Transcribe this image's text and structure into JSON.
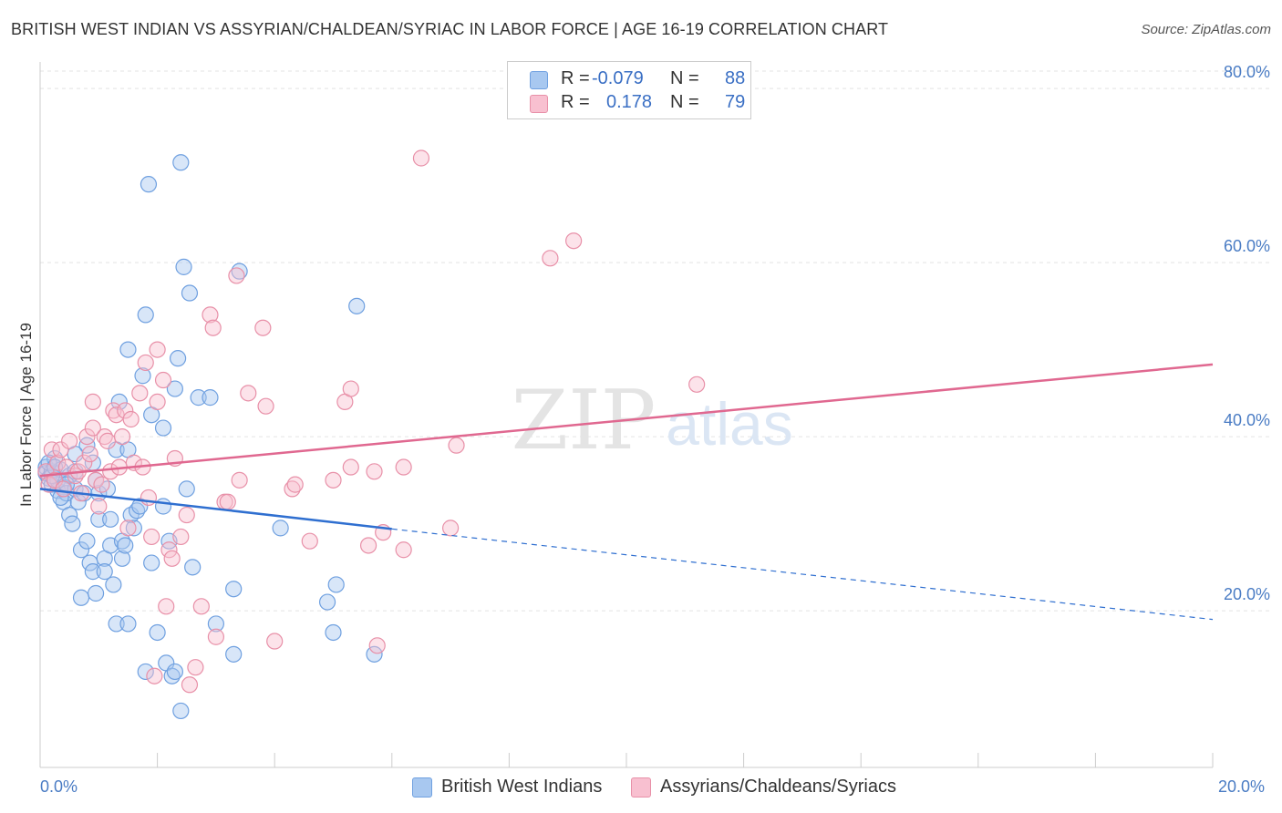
{
  "title": "BRITISH WEST INDIAN VS ASSYRIAN/CHALDEAN/SYRIAC IN LABOR FORCE | AGE 16-19 CORRELATION CHART",
  "source": "Source: ZipAtlas.com",
  "watermark": {
    "zip": "ZIP",
    "atlas": "atlas"
  },
  "legend": {
    "rows": [
      {
        "r_label": "R =",
        "r_value": "-0.079",
        "n_label": "N =",
        "n_value": "88",
        "color": "#a8c8f0"
      },
      {
        "r_label": "R =",
        "r_value": "0.178",
        "n_label": "N =",
        "n_value": "79",
        "color": "#f8c0d0"
      }
    ]
  },
  "x_ticks": {
    "left": "0.0%",
    "right": "20.0%"
  },
  "chart_data": {
    "type": "scatter",
    "title": "BRITISH WEST INDIAN VS ASSYRIAN/CHALDEAN/SYRIAC IN LABOR FORCE | AGE 16-19 CORRELATION CHART",
    "xlabel": "",
    "ylabel": "In Labor Force | Age 16-19",
    "xlim": [
      0,
      20
    ],
    "ylim": [
      2,
      82
    ],
    "y_ticks": [
      {
        "value": 20,
        "label": "20.0%"
      },
      {
        "value": 40,
        "label": "40.0%"
      },
      {
        "value": 60,
        "label": "60.0%"
      },
      {
        "value": 80,
        "label": "80.0%"
      }
    ],
    "x_ticks": [
      0,
      2,
      4,
      6,
      8,
      10,
      12,
      14,
      16,
      18,
      20
    ],
    "grid": true,
    "series": [
      {
        "name": "British West Indians",
        "color": "#6fa0e0",
        "fill": "#a8c8f0",
        "trend": {
          "x0": 0,
          "y0": 34.0,
          "x1": 6.0,
          "y1": 29.4,
          "dash_to_x": 20,
          "dash_to_y": 19.0,
          "color": "#2f6fd0"
        },
        "points": [
          [
            0.1,
            36.5
          ],
          [
            0.1,
            35.8
          ],
          [
            0.15,
            35.2
          ],
          [
            0.2,
            36.0
          ],
          [
            0.2,
            34.5
          ],
          [
            0.25,
            37.5
          ],
          [
            0.3,
            33.8
          ],
          [
            0.3,
            35.0
          ],
          [
            0.35,
            36.2
          ],
          [
            0.4,
            34.2
          ],
          [
            0.4,
            32.5
          ],
          [
            0.45,
            33.5
          ],
          [
            0.5,
            31.0
          ],
          [
            0.5,
            35.5
          ],
          [
            0.55,
            30.0
          ],
          [
            0.6,
            34.0
          ],
          [
            0.6,
            36.0
          ],
          [
            0.65,
            32.5
          ],
          [
            0.7,
            27.0
          ],
          [
            0.7,
            21.5
          ],
          [
            0.75,
            33.5
          ],
          [
            0.8,
            28.0
          ],
          [
            0.8,
            39.0
          ],
          [
            0.85,
            25.5
          ],
          [
            0.9,
            24.5
          ],
          [
            0.9,
            37.0
          ],
          [
            0.95,
            22.0
          ],
          [
            1.0,
            33.5
          ],
          [
            1.0,
            30.5
          ],
          [
            1.1,
            26.0
          ],
          [
            1.1,
            24.5
          ],
          [
            1.2,
            27.5
          ],
          [
            1.2,
            30.5
          ],
          [
            1.25,
            23.0
          ],
          [
            1.3,
            18.5
          ],
          [
            1.3,
            38.5
          ],
          [
            1.35,
            44.0
          ],
          [
            1.4,
            28.0
          ],
          [
            1.4,
            26.0
          ],
          [
            1.45,
            27.5
          ],
          [
            1.5,
            18.5
          ],
          [
            1.5,
            38.5
          ],
          [
            1.5,
            50.0
          ],
          [
            1.55,
            31.0
          ],
          [
            1.6,
            29.5
          ],
          [
            1.65,
            31.5
          ],
          [
            1.7,
            32.0
          ],
          [
            1.75,
            47.0
          ],
          [
            1.8,
            13.0
          ],
          [
            1.8,
            54.0
          ],
          [
            1.85,
            69.0
          ],
          [
            1.9,
            25.5
          ],
          [
            1.9,
            42.5
          ],
          [
            2.0,
            17.5
          ],
          [
            2.1,
            41.0
          ],
          [
            2.1,
            32.0
          ],
          [
            2.15,
            14.0
          ],
          [
            2.2,
            28.0
          ],
          [
            2.25,
            12.5
          ],
          [
            2.3,
            13.0
          ],
          [
            2.3,
            45.5
          ],
          [
            2.35,
            49.0
          ],
          [
            2.4,
            8.5
          ],
          [
            2.4,
            71.5
          ],
          [
            2.45,
            59.5
          ],
          [
            2.5,
            34.0
          ],
          [
            2.55,
            56.5
          ],
          [
            2.6,
            25.0
          ],
          [
            2.7,
            44.5
          ],
          [
            2.9,
            44.5
          ],
          [
            3.0,
            18.5
          ],
          [
            3.3,
            15.0
          ],
          [
            3.3,
            22.5
          ],
          [
            3.4,
            59.0
          ],
          [
            4.1,
            29.5
          ],
          [
            4.9,
            21.0
          ],
          [
            5.0,
            17.5
          ],
          [
            5.05,
            23.0
          ],
          [
            5.4,
            55.0
          ],
          [
            5.7,
            15.0
          ],
          [
            0.2,
            35.5
          ],
          [
            0.35,
            33.0
          ],
          [
            0.6,
            38.0
          ],
          [
            0.95,
            35.0
          ],
          [
            1.15,
            34.0
          ],
          [
            0.45,
            34.5
          ],
          [
            0.15,
            37.0
          ],
          [
            0.25,
            36.5
          ]
        ]
      },
      {
        "name": "Assyrians/Chaldeans/Syriacs",
        "color": "#e890a8",
        "fill": "#f8c0d0",
        "trend": {
          "x0": 0,
          "y0": 35.5,
          "x1": 20,
          "y1": 48.3,
          "color": "#e06890"
        },
        "points": [
          [
            0.1,
            36.0
          ],
          [
            0.15,
            34.5
          ],
          [
            0.2,
            38.5
          ],
          [
            0.25,
            35.0
          ],
          [
            0.3,
            37.0
          ],
          [
            0.35,
            38.5
          ],
          [
            0.4,
            34.0
          ],
          [
            0.45,
            36.5
          ],
          [
            0.5,
            39.5
          ],
          [
            0.6,
            35.5
          ],
          [
            0.65,
            36.0
          ],
          [
            0.7,
            33.5
          ],
          [
            0.75,
            37.0
          ],
          [
            0.8,
            40.0
          ],
          [
            0.85,
            38.0
          ],
          [
            0.9,
            44.0
          ],
          [
            0.9,
            41.0
          ],
          [
            0.95,
            35.0
          ],
          [
            1.0,
            32.0
          ],
          [
            1.05,
            34.5
          ],
          [
            1.1,
            40.0
          ],
          [
            1.15,
            39.5
          ],
          [
            1.2,
            36.0
          ],
          [
            1.25,
            43.0
          ],
          [
            1.3,
            42.5
          ],
          [
            1.35,
            36.5
          ],
          [
            1.4,
            40.0
          ],
          [
            1.45,
            43.0
          ],
          [
            1.5,
            29.5
          ],
          [
            1.55,
            42.0
          ],
          [
            1.6,
            37.0
          ],
          [
            1.7,
            45.0
          ],
          [
            1.75,
            36.5
          ],
          [
            1.8,
            48.5
          ],
          [
            1.85,
            33.0
          ],
          [
            1.9,
            28.5
          ],
          [
            1.95,
            12.5
          ],
          [
            2.0,
            44.0
          ],
          [
            2.0,
            50.0
          ],
          [
            2.1,
            46.5
          ],
          [
            2.15,
            20.5
          ],
          [
            2.2,
            27.0
          ],
          [
            2.25,
            26.0
          ],
          [
            2.3,
            37.5
          ],
          [
            2.4,
            28.5
          ],
          [
            2.5,
            31.0
          ],
          [
            2.55,
            11.5
          ],
          [
            2.65,
            13.5
          ],
          [
            2.75,
            20.5
          ],
          [
            2.9,
            54.0
          ],
          [
            2.95,
            52.5
          ],
          [
            3.0,
            17.0
          ],
          [
            3.15,
            32.5
          ],
          [
            3.2,
            32.5
          ],
          [
            3.35,
            58.5
          ],
          [
            3.4,
            35.0
          ],
          [
            3.55,
            45.0
          ],
          [
            3.8,
            52.5
          ],
          [
            3.85,
            43.5
          ],
          [
            4.0,
            16.5
          ],
          [
            4.3,
            34.0
          ],
          [
            4.35,
            34.5
          ],
          [
            4.6,
            28.0
          ],
          [
            5.0,
            35.0
          ],
          [
            5.2,
            44.0
          ],
          [
            5.3,
            45.5
          ],
          [
            5.3,
            36.5
          ],
          [
            5.6,
            27.5
          ],
          [
            5.7,
            36.0
          ],
          [
            5.75,
            16.0
          ],
          [
            5.85,
            29.0
          ],
          [
            6.2,
            36.5
          ],
          [
            6.2,
            27.0
          ],
          [
            6.5,
            72.0
          ],
          [
            7.1,
            39.0
          ],
          [
            7.0,
            29.5
          ],
          [
            8.7,
            60.5
          ],
          [
            9.1,
            62.5
          ],
          [
            11.2,
            46.0
          ]
        ]
      }
    ]
  }
}
